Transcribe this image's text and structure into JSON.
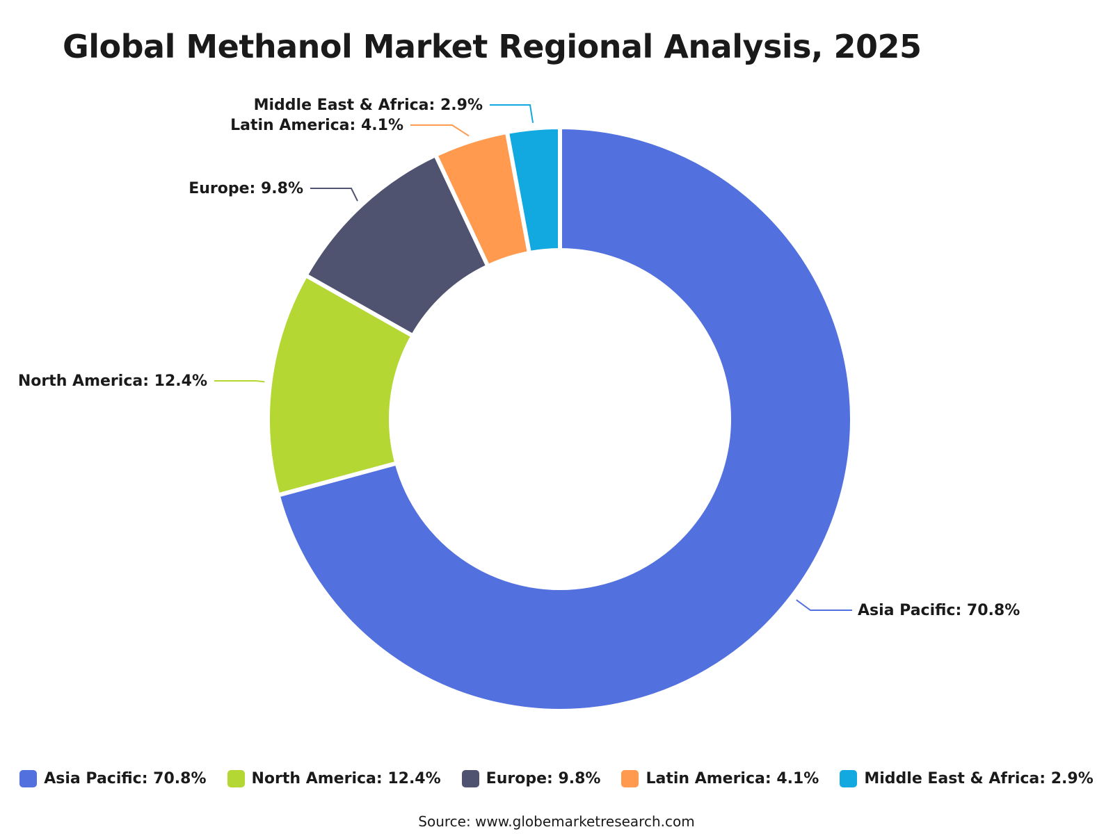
{
  "chart_data": {
    "type": "pie",
    "title": "Global Methanol Market Regional Analysis, 2025",
    "categories": [
      "Asia Pacific",
      "North America",
      "Europe",
      "Latin America",
      "Middle East & Africa"
    ],
    "values": [
      70.8,
      12.4,
      9.8,
      4.1,
      2.9
    ],
    "labels": [
      "Asia Pacific: 70.8%",
      "North America: 12.4%",
      "Europe: 9.8%",
      "Latin America: 4.1%",
      "Middle East & Africa: 2.9%"
    ],
    "colors": [
      "#5271df",
      "#b5d733",
      "#50536f",
      "#ff9a4f",
      "#11a9e0"
    ],
    "legend": "bottom"
  },
  "source": "Source: www.globemarketresearch.com"
}
